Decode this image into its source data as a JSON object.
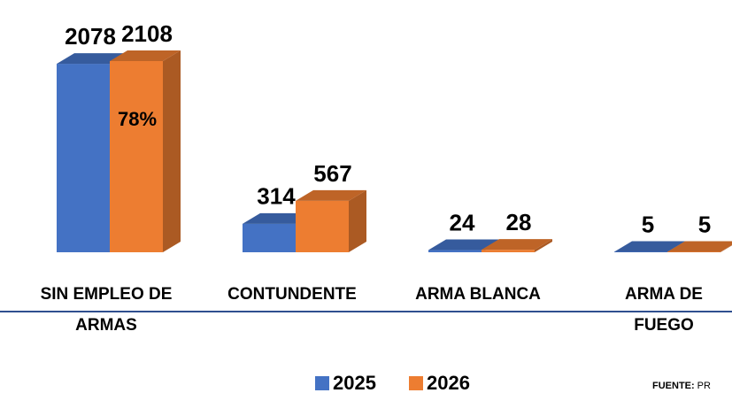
{
  "chart_data": {
    "type": "bar3d",
    "categories": [
      [
        "SIN EMPLEO DE",
        "ARMAS"
      ],
      [
        "CONTUNDENTE"
      ],
      [
        "ARMA BLANCA"
      ],
      [
        "ARMA DE",
        "FUEGO"
      ]
    ],
    "series": [
      {
        "name": "2025",
        "color": "#4472c4",
        "values": [
          2078,
          314,
          24,
          5
        ]
      },
      {
        "name": "2026",
        "color": "#ed7d31",
        "values": [
          2108,
          567,
          28,
          5
        ]
      }
    ],
    "annotation": "78%",
    "source": {
      "label": "FUENTE:",
      "text": "PR"
    }
  }
}
